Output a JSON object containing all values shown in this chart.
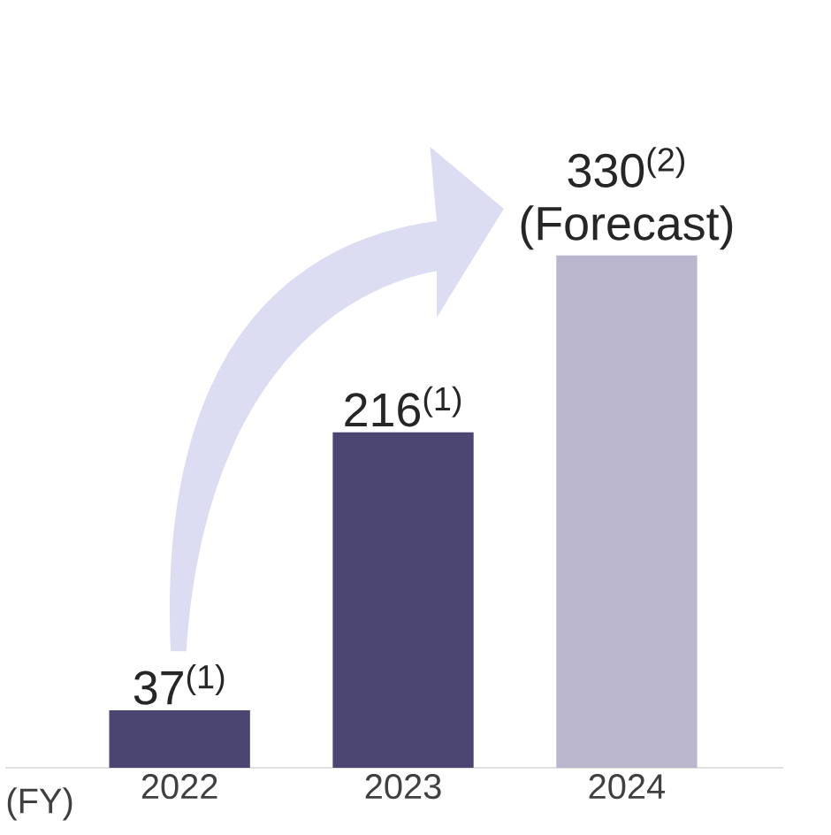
{
  "chart_data": {
    "type": "bar",
    "xlabel": "(FY)",
    "categories": [
      "2022",
      "2023",
      "2024"
    ],
    "values": [
      37,
      216,
      330
    ],
    "colors": [
      "#4a4571",
      "#4b4672",
      "#b9b6cd"
    ],
    "value_labels": [
      "37$^{(1)}$",
      "216$^{(1)}$",
      "330$^{(2)}$ (Forecast)"
    ]
  }
}
